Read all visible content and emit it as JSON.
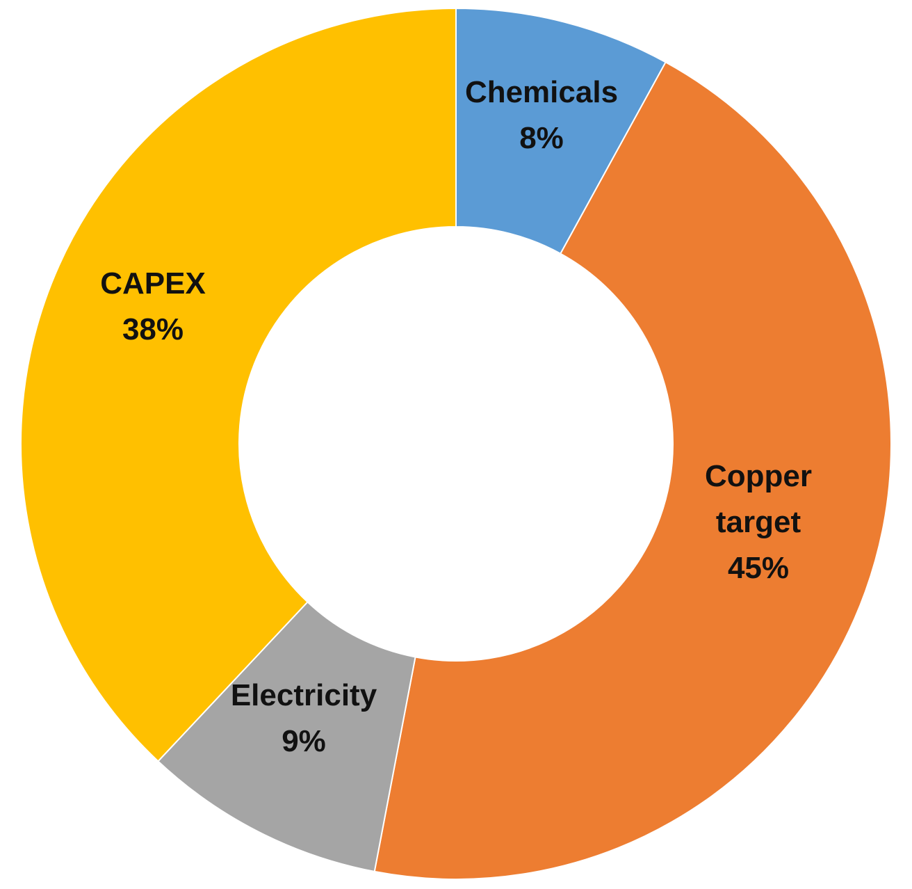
{
  "chart_data": {
    "type": "pie",
    "variant": "donut",
    "title": "",
    "slices": [
      {
        "label": [
          "Chemicals"
        ],
        "value": 8,
        "value_label": "8%",
        "color": "#5B9BD5"
      },
      {
        "label": [
          "Copper",
          "target"
        ],
        "value": 45,
        "value_label": "45%",
        "color": "#ED7D31"
      },
      {
        "label": [
          "Electricity"
        ],
        "value": 9,
        "value_label": "9%",
        "color": "#A5A5A5"
      },
      {
        "label": [
          "CAPEX"
        ],
        "value": 38,
        "value_label": "38%",
        "color": "#FFC000"
      }
    ],
    "start": "12 o'clock",
    "direction": "clockwise",
    "legend": "none",
    "slice_border_color": "#ffffff"
  }
}
